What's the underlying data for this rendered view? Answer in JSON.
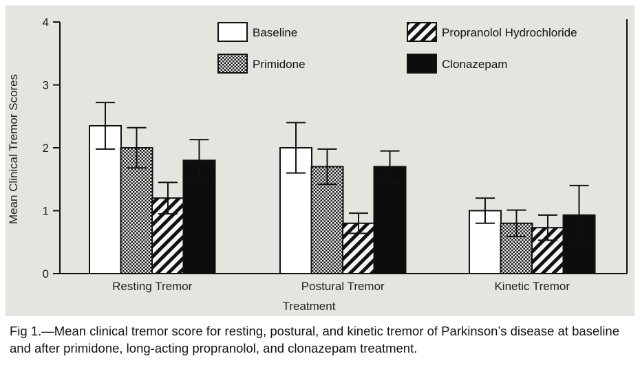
{
  "chart_data": {
    "type": "bar",
    "title": "",
    "xlabel": "Treatment",
    "ylabel": "Mean Clinical Tremor Scores",
    "ylim": [
      0,
      4
    ],
    "yticks": [
      "0",
      "1",
      "2",
      "3",
      "4"
    ],
    "categories": [
      "Resting Tremor",
      "Postural Tremor",
      "Kinetic Tremor"
    ],
    "legend_position": "top",
    "series": [
      {
        "name": "Baseline",
        "pattern": "open",
        "values": [
          2.35,
          2.0,
          1.0
        ],
        "error": [
          0.37,
          0.4,
          0.2
        ]
      },
      {
        "name": "Primidone",
        "pattern": "crosshatch",
        "values": [
          2.0,
          1.7,
          0.8
        ],
        "error": [
          0.32,
          0.28,
          0.21
        ]
      },
      {
        "name": "Propranolol Hydrochloride",
        "pattern": "diagonal",
        "values": [
          1.2,
          0.8,
          0.73
        ],
        "error": [
          0.25,
          0.16,
          0.2
        ]
      },
      {
        "name": "Clonazepam",
        "pattern": "solid",
        "values": [
          1.8,
          1.7,
          0.93
        ],
        "error": [
          0.33,
          0.25,
          0.47
        ]
      }
    ],
    "grid": false
  },
  "caption": "Fig 1.—Mean clinical tremor score for resting, postural, and kinetic tremor of Parkinson’s disease at baseline and after primidone, long-acting propranolol, and clonazepam treatment.",
  "colors": {
    "panel": "#e6e4df",
    "ink": "#111111",
    "bar_open": "#ffffff",
    "bar_solid": "#0d0d0d"
  }
}
